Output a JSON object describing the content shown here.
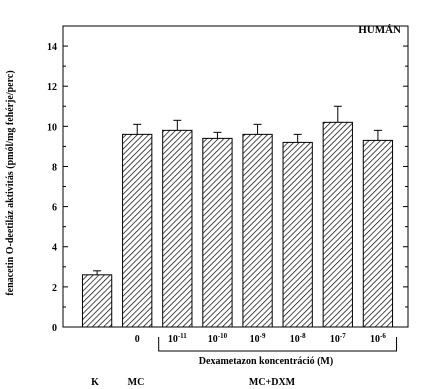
{
  "chart_data": {
    "type": "bar",
    "title": "HUMÁN",
    "ylabel": "fenacetin O-deetiláz aktivitás (pmól/mg fehérje/perc)",
    "xlabel": "Dexametazon koncentráció (M)",
    "ylim": [
      0,
      15
    ],
    "yticks": [
      0,
      2,
      4,
      6,
      8,
      10,
      12,
      14
    ],
    "categories": [
      {
        "base": "",
        "exp": ""
      },
      {
        "base": "0",
        "exp": ""
      },
      {
        "base": "10",
        "exp": "-11"
      },
      {
        "base": "10",
        "exp": "-10"
      },
      {
        "base": "10",
        "exp": "-9"
      },
      {
        "base": "10",
        "exp": "-8"
      },
      {
        "base": "10",
        "exp": "-7"
      },
      {
        "base": "10",
        "exp": "-6"
      }
    ],
    "values": [
      2.6,
      9.6,
      9.8,
      9.4,
      9.6,
      9.2,
      10.2,
      9.3
    ],
    "errors": [
      0.2,
      0.5,
      0.5,
      0.3,
      0.5,
      0.4,
      0.8,
      0.5
    ],
    "group_labels": [
      "K",
      "MC",
      "MC+DXM"
    ],
    "pattern": "diagonal-hatch",
    "colors": {
      "bar_fill": "#ffffff",
      "stroke": "#000000"
    }
  }
}
